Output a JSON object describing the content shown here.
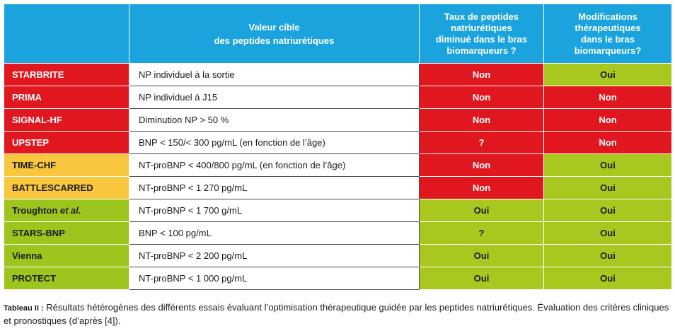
{
  "colors": {
    "header_blue": "#1aa3dc",
    "red": "#e0171f",
    "yellow": "#f9c73e",
    "green": "#a8c820"
  },
  "table": {
    "headers": {
      "col1": "",
      "col2_line1": "Valeur cible",
      "col2_line2": "des peptides natriurétiques",
      "col3_line1": "Taux de peptides",
      "col3_line2": "natriurétiques",
      "col3_line3": "diminué dans le bras",
      "col3_line4": "biomarqueurs ?",
      "col4_line1": "Modifications",
      "col4_line2": "thérapeutiques",
      "col4_line3": "dans le bras",
      "col4_line4": "biomarqueurs?"
    },
    "rows": [
      {
        "name": "STARBRITE",
        "name_italic": "",
        "name_color": "red",
        "target": "NP individuel à la sortie",
        "reduced": "Non",
        "reduced_color": "red",
        "modified": "Oui",
        "modified_color": "green"
      },
      {
        "name": "PRIMA",
        "name_italic": "",
        "name_color": "red",
        "target": "NP individuel à J15",
        "reduced": "Non",
        "reduced_color": "red",
        "modified": "Non",
        "modified_color": "red"
      },
      {
        "name": "SIGNAL-HF",
        "name_italic": "",
        "name_color": "red",
        "target": "Diminution NP > 50 %",
        "reduced": "Non",
        "reduced_color": "red",
        "modified": "Non",
        "modified_color": "red"
      },
      {
        "name": "UPSTEP",
        "name_italic": "",
        "name_color": "red",
        "target": "BNP < 150/< 300 pg/mL (en fonction de l’âge)",
        "reduced": "?",
        "reduced_color": "red",
        "modified": "Non",
        "modified_color": "red"
      },
      {
        "name": "TIME-CHF",
        "name_italic": "",
        "name_color": "yellow",
        "target": "NT-proBNP < 400/800 pg/mL (en fonction de l’âge)",
        "reduced": "Non",
        "reduced_color": "red",
        "modified": "Oui",
        "modified_color": "green"
      },
      {
        "name": "BATTLESCARRED",
        "name_italic": "",
        "name_color": "yellow",
        "target": "NT-proBNP < 1 270 pg/mL",
        "reduced": "Non",
        "reduced_color": "red",
        "modified": "Oui",
        "modified_color": "green"
      },
      {
        "name": "Troughton ",
        "name_italic": "et al.",
        "name_color": "green",
        "target": "NT-proBNP < 1 700 g/mL",
        "reduced": "Oui",
        "reduced_color": "green",
        "modified": "Oui",
        "modified_color": "green"
      },
      {
        "name": "STARS-BNP",
        "name_italic": "",
        "name_color": "green",
        "target": "BNP < 100 pg/mL",
        "reduced": "?",
        "reduced_color": "green",
        "modified": "Oui",
        "modified_color": "green"
      },
      {
        "name": "Vienna",
        "name_italic": "",
        "name_color": "green",
        "target": "NT-proBNP < 2 200 pg/mL",
        "reduced": "Oui",
        "reduced_color": "green",
        "modified": "Oui",
        "modified_color": "green"
      },
      {
        "name": "PROTECT",
        "name_italic": "",
        "name_color": "green",
        "target": "NT-proBNP < 1 000 pg/mL",
        "reduced": "Oui",
        "reduced_color": "green",
        "modified": "Oui",
        "modified_color": "green"
      }
    ]
  },
  "caption": {
    "label": "Tableau II :",
    "text": " Résultats hétérogènes des différents essais évaluant l’optimisation thérapeutique guidée par les peptides natriurétiques. Évaluation des critères cliniques et pronostiques (d’après [4])."
  }
}
